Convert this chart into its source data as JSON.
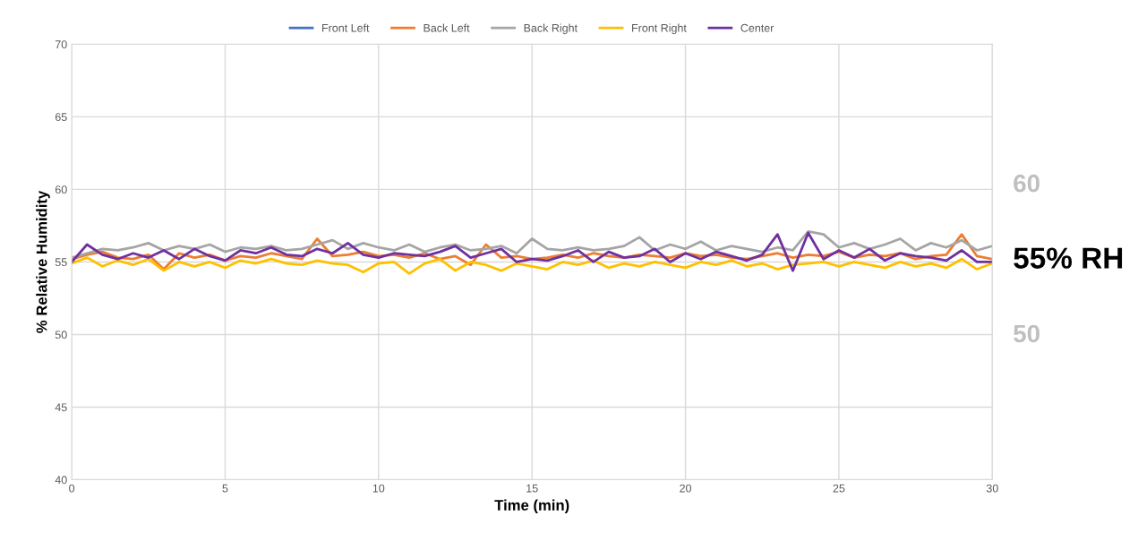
{
  "chart_data": {
    "type": "line",
    "xlabel": "Time (min)",
    "ylabel": "% Relative Humidity",
    "x": [
      0,
      0.5,
      1,
      1.5,
      2,
      2.5,
      3,
      3.5,
      4,
      4.5,
      5,
      5.5,
      6,
      6.5,
      7,
      7.5,
      8,
      8.5,
      9,
      9.5,
      10,
      10.5,
      11,
      11.5,
      12,
      12.5,
      13,
      13.5,
      14,
      14.5,
      15,
      15.5,
      16,
      16.5,
      17,
      17.5,
      18,
      18.5,
      19,
      19.5,
      20,
      20.5,
      21,
      21.5,
      22,
      22.5,
      23,
      23.5,
      24,
      24.5,
      25,
      25.5,
      26,
      26.5,
      27,
      27.5,
      28,
      28.5,
      29,
      29.5,
      30
    ],
    "xlim": [
      0,
      30
    ],
    "xticks": [
      0,
      5,
      10,
      15,
      20,
      25,
      30
    ],
    "ylim": [
      40,
      70
    ],
    "yticks": [
      40,
      45,
      50,
      55,
      60,
      65,
      70
    ],
    "grid": true,
    "legend": "top",
    "line_style": "solid",
    "marker": "none",
    "series": [
      {
        "name": "Front Left",
        "color": "#4472c4",
        "values": [
          null,
          null,
          null,
          null,
          null,
          null,
          null,
          null,
          null,
          null,
          null,
          null,
          null,
          null,
          null,
          null,
          null,
          null,
          null,
          null,
          null,
          null,
          null,
          null,
          null,
          null,
          null,
          null,
          null,
          null,
          null,
          null,
          null,
          null,
          null,
          null,
          null,
          null,
          null,
          null,
          null,
          null,
          null,
          null,
          null,
          null,
          null,
          null,
          null,
          null,
          null,
          null,
          null,
          null,
          null,
          null,
          null,
          null,
          null,
          null,
          null
        ]
      },
      {
        "name": "Back Left",
        "color": "#ed7d31",
        "values": [
          55.2,
          55.5,
          55.7,
          55.3,
          55.2,
          55.5,
          54.5,
          55.6,
          55.3,
          55.5,
          55.1,
          55.4,
          55.3,
          55.6,
          55.4,
          55.2,
          56.6,
          55.4,
          55.5,
          55.7,
          55.4,
          55.5,
          55.3,
          55.6,
          55.2,
          55.4,
          54.8,
          56.2,
          55.3,
          55.4,
          55.2,
          55.3,
          55.5,
          55.3,
          55.6,
          55.4,
          55.3,
          55.5,
          55.4,
          55.3,
          55.6,
          55.4,
          55.5,
          55.3,
          55.2,
          55.4,
          55.6,
          55.3,
          55.5,
          55.4,
          55.7,
          55.3,
          55.5,
          55.4,
          55.6,
          55.2,
          55.4,
          55.5,
          56.9,
          55.4,
          55.2
        ]
      },
      {
        "name": "Back Right",
        "color": "#a5a5a5",
        "values": [
          55.3,
          55.6,
          55.9,
          55.8,
          56.0,
          56.3,
          55.8,
          56.1,
          55.9,
          56.2,
          55.7,
          56.0,
          55.9,
          56.1,
          55.8,
          55.9,
          56.2,
          56.5,
          55.9,
          56.3,
          56.0,
          55.8,
          56.2,
          55.7,
          56.0,
          56.2,
          55.8,
          55.9,
          56.1,
          55.6,
          56.6,
          55.9,
          55.8,
          56.0,
          55.8,
          55.9,
          56.1,
          56.7,
          55.8,
          56.2,
          55.9,
          56.4,
          55.8,
          56.1,
          55.9,
          55.7,
          56.0,
          55.8,
          57.1,
          56.9,
          56.0,
          56.3,
          55.9,
          56.2,
          56.6,
          55.8,
          56.3,
          56.0,
          56.5,
          55.8,
          56.1
        ]
      },
      {
        "name": "Front Right",
        "color": "#ffc000",
        "values": [
          54.9,
          55.3,
          54.7,
          55.1,
          54.8,
          55.2,
          54.4,
          55.0,
          54.7,
          55.0,
          54.6,
          55.1,
          54.9,
          55.2,
          54.9,
          54.8,
          55.1,
          54.9,
          54.8,
          54.3,
          54.9,
          55.0,
          54.2,
          54.9,
          55.2,
          54.4,
          55.0,
          54.8,
          54.4,
          54.9,
          54.7,
          54.5,
          55.0,
          54.8,
          55.1,
          54.6,
          54.9,
          54.7,
          55.0,
          54.8,
          54.6,
          55.0,
          54.8,
          55.1,
          54.7,
          54.9,
          54.5,
          54.8,
          54.9,
          55.0,
          54.7,
          55.0,
          54.8,
          54.6,
          55.0,
          54.7,
          54.9,
          54.6,
          55.2,
          54.5,
          54.9
        ]
      },
      {
        "name": "Center",
        "color": "#7030a0",
        "values": [
          55.0,
          56.2,
          55.5,
          55.2,
          55.6,
          55.3,
          55.8,
          55.2,
          55.9,
          55.4,
          55.1,
          55.8,
          55.6,
          56.0,
          55.5,
          55.4,
          55.9,
          55.6,
          56.3,
          55.5,
          55.3,
          55.6,
          55.5,
          55.4,
          55.7,
          56.1,
          55.3,
          55.6,
          55.9,
          55.0,
          55.2,
          55.1,
          55.4,
          55.8,
          55.0,
          55.7,
          55.3,
          55.4,
          55.9,
          55.0,
          55.6,
          55.2,
          55.7,
          55.4,
          55.1,
          55.5,
          56.9,
          54.4,
          57.0,
          55.2,
          55.8,
          55.3,
          55.9,
          55.1,
          55.6,
          55.4,
          55.3,
          55.1,
          55.8,
          55.0,
          55.0
        ]
      }
    ],
    "annotations": [
      "60",
      "55% RH",
      "50"
    ]
  }
}
